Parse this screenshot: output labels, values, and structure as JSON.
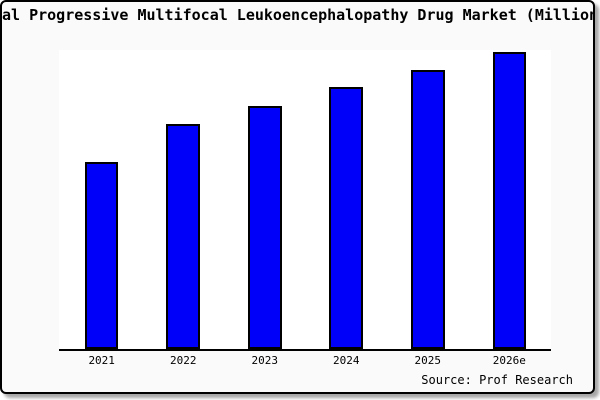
{
  "title": {
    "visible_text": "al Progressive Multifocal Leukoencephalopathy Drug Market (Million"
  },
  "source": {
    "label": "Source: Prof Research"
  },
  "colors": {
    "card_background": "#FAFAFA",
    "plot_background": "#FFFFFF",
    "bar_fill": "#0000FA",
    "bar_border": "#000000",
    "axis_line": "#000000",
    "text": "#000000"
  },
  "chart_data": {
    "type": "bar",
    "title": "al Progressive Multifocal Leukoencephalopathy Drug Market (Million",
    "categories": [
      "2021",
      "2022",
      "2023",
      "2024",
      "2025",
      "2026e"
    ],
    "values": [
      63,
      75.7,
      81.8,
      88.3,
      94,
      100
    ],
    "xlabel": "",
    "ylabel": "",
    "ylim": [
      0,
      100.6
    ],
    "y_axis_ticks_visible": false,
    "grid": false,
    "legend": false,
    "bar_color": "#0000FA",
    "bar_border_color": "#000000",
    "source": "Source: Prof Research"
  }
}
